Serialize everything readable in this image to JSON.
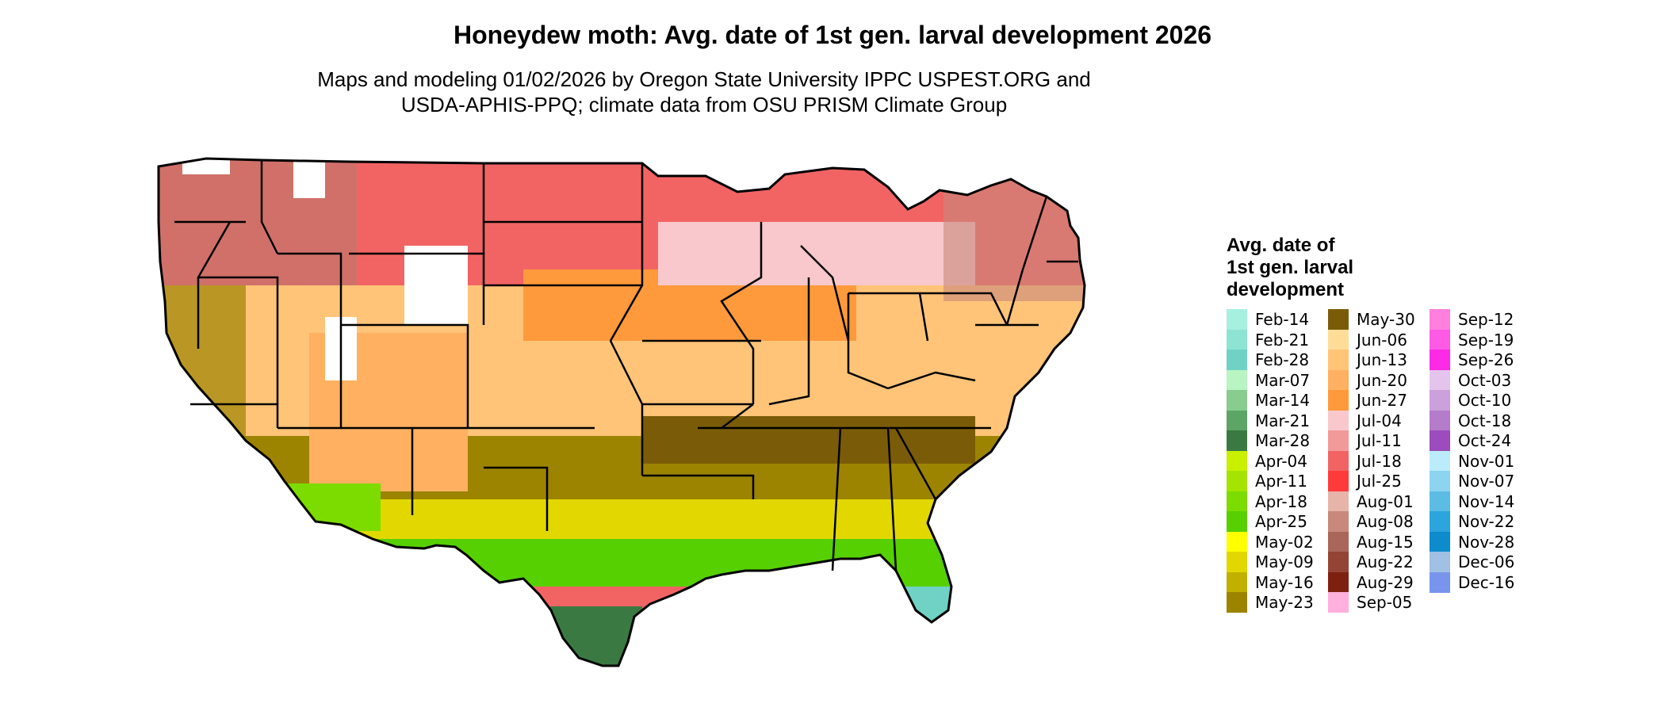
{
  "title": "Honeydew moth: Avg. date of 1st gen. larval development 2026",
  "subtitle_lines": [
    "Maps and modeling 01/02/2026 by Oregon State University IPPC USPEST.ORG and",
    "USDA-APHIS-PPQ; climate data from OSU PRISM Climate Group"
  ],
  "legend": {
    "title_lines": [
      "Avg. date of",
      "1st gen. larval",
      "development"
    ],
    "columns": [
      [
        {
          "label": "Feb-14",
          "color": "#a6f0e0"
        },
        {
          "label": "Feb-21",
          "color": "#8ee4d2"
        },
        {
          "label": "Feb-28",
          "color": "#6fd2c4"
        },
        {
          "label": "Mar-07",
          "color": "#b8f5c3"
        },
        {
          "label": "Mar-14",
          "color": "#88cc90"
        },
        {
          "label": "Mar-21",
          "color": "#5da467"
        },
        {
          "label": "Mar-28",
          "color": "#3a7a42"
        },
        {
          "label": "Apr-04",
          "color": "#c8f000"
        },
        {
          "label": "Apr-11",
          "color": "#a4e400"
        },
        {
          "label": "Apr-18",
          "color": "#7cdc00"
        },
        {
          "label": "Apr-25",
          "color": "#56d000"
        },
        {
          "label": "May-02",
          "color": "#ffff00"
        },
        {
          "label": "May-09",
          "color": "#e2d800"
        },
        {
          "label": "May-16",
          "color": "#c2b000"
        },
        {
          "label": "May-23",
          "color": "#9c8400"
        }
      ],
      [
        {
          "label": "May-30",
          "color": "#7a5c08"
        },
        {
          "label": "Jun-06",
          "color": "#ffdd99"
        },
        {
          "label": "Jun-13",
          "color": "#ffc478"
        },
        {
          "label": "Jun-20",
          "color": "#ffb060"
        },
        {
          "label": "Jun-27",
          "color": "#ff9a3c"
        },
        {
          "label": "Jul-04",
          "color": "#f8c8cc"
        },
        {
          "label": "Jul-11",
          "color": "#f29a9a"
        },
        {
          "label": "Jul-18",
          "color": "#f26464"
        },
        {
          "label": "Jul-25",
          "color": "#ff3a3a"
        },
        {
          "label": "Aug-01",
          "color": "#e6b4a8"
        },
        {
          "label": "Aug-08",
          "color": "#c8887c"
        },
        {
          "label": "Aug-15",
          "color": "#aa6658"
        },
        {
          "label": "Aug-22",
          "color": "#944434"
        },
        {
          "label": "Aug-29",
          "color": "#7e2010"
        },
        {
          "label": "Sep-05",
          "color": "#ffb0dc"
        }
      ],
      [
        {
          "label": "Sep-12",
          "color": "#ff80dc"
        },
        {
          "label": "Sep-19",
          "color": "#ff5ae6"
        },
        {
          "label": "Sep-26",
          "color": "#ff2ae6"
        },
        {
          "label": "Oct-03",
          "color": "#e4c4ec"
        },
        {
          "label": "Oct-10",
          "color": "#cca0da"
        },
        {
          "label": "Oct-18",
          "color": "#b47cca"
        },
        {
          "label": "Oct-24",
          "color": "#9c4cbc"
        },
        {
          "label": "Nov-01",
          "color": "#bcecfc"
        },
        {
          "label": "Nov-07",
          "color": "#8cd4f0"
        },
        {
          "label": "Nov-14",
          "color": "#5cbce4"
        },
        {
          "label": "Nov-22",
          "color": "#2ca4dc"
        },
        {
          "label": "Nov-28",
          "color": "#0c8ccc"
        },
        {
          "label": "Dec-06",
          "color": "#a0c0e4"
        },
        {
          "label": "Dec-16",
          "color": "#7894ec"
        }
      ]
    ]
  },
  "map_colors": {
    "outline": "#000000",
    "north": "#f26464",
    "mountain": "#b47a6e",
    "snow": "#ffffff",
    "central_peach": "#ffc478",
    "central_orange": "#ff9a3c",
    "pink": "#f8c8cc",
    "south_olive": "#9c8400",
    "south_brown": "#7a5c08",
    "gulf_yellow": "#e2d800",
    "gulf_green": "#56d000",
    "florida_teal": "#6fd2c4",
    "texas_green": "#3a7a42"
  }
}
